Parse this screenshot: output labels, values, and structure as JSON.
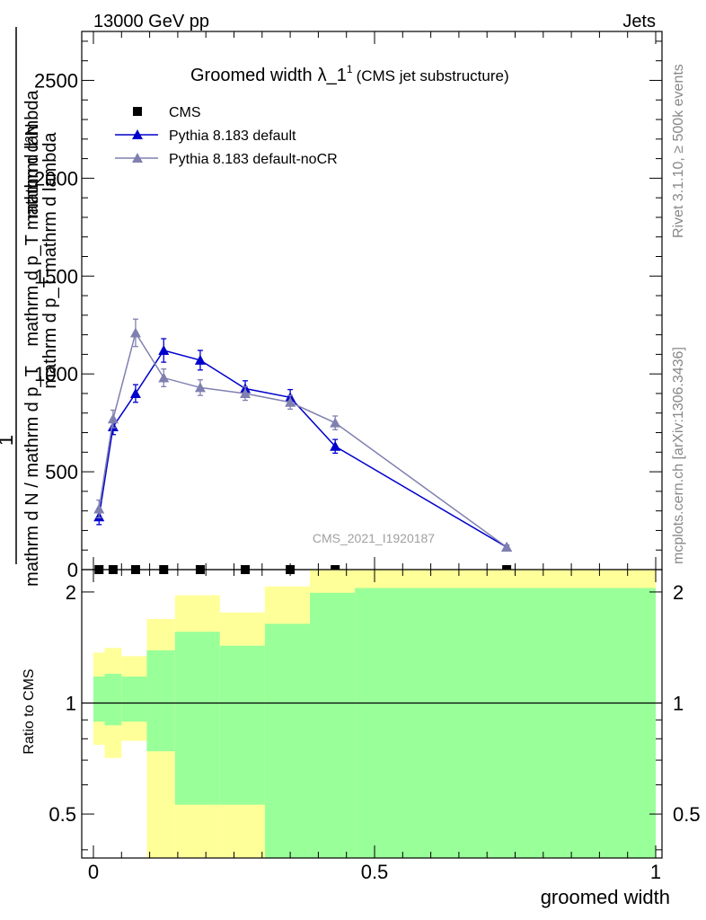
{
  "header": {
    "left": "13000 GeV pp",
    "right": "Jets"
  },
  "side": {
    "rivet": "Rivet 3.1.10, ≥ 500k events",
    "mcplots": "mcplots.cern.ch [arXiv:1306.3436]"
  },
  "watermark": "CMS_2021_I1920187",
  "colors": {
    "cms": "#000000",
    "default": "#0000cc",
    "nocr": "#8080b0",
    "band_yellow": "#ffff99",
    "band_green": "#99ff99"
  },
  "chart_data": [
    {
      "type": "line",
      "title": "Groomed width",
      "title_symbol": "λ_1",
      "title_sup": "1",
      "title_note": "(CMS jet substructure)",
      "ylabel_top": "mathrm d²N",
      "ylabel_top2": "mathrm d p_T mathrm d lambda",
      "ylabel_frac_num": "1",
      "ylabel_frac_den": "mathrm d N / mathrm d p_T",
      "ylabel_den2": "mathrm d p_T mathrm d lambda",
      "xlim": [
        0,
        1
      ],
      "ylim": [
        0,
        2750
      ],
      "yticks": [
        0,
        500,
        1000,
        1500,
        2000,
        2500
      ],
      "ytick_labels": [
        "0",
        "500",
        "1000",
        "1500",
        "2000",
        "2500"
      ],
      "legend": [
        "CMS",
        "Pythia 8.183 default",
        "Pythia 8.183 default-noCR"
      ],
      "series": [
        {
          "name": "CMS",
          "x": [
            0.01,
            0.035,
            0.075,
            0.125,
            0.19,
            0.27,
            0.35,
            0.43,
            0.735
          ],
          "y": [
            0,
            0,
            0,
            0,
            0,
            0,
            0,
            0,
            0
          ]
        },
        {
          "name": "Pythia 8.183 default",
          "x": [
            0.01,
            0.035,
            0.075,
            0.125,
            0.19,
            0.27,
            0.35,
            0.43,
            0.735
          ],
          "y": [
            270,
            730,
            900,
            1120,
            1070,
            925,
            880,
            630,
            115
          ],
          "err": [
            40,
            40,
            45,
            60,
            50,
            40,
            40,
            35,
            10
          ]
        },
        {
          "name": "Pythia 8.183 default-noCR",
          "x": [
            0.01,
            0.035,
            0.075,
            0.125,
            0.19,
            0.27,
            0.35,
            0.43,
            0.735
          ],
          "y": [
            310,
            770,
            1210,
            980,
            930,
            900,
            855,
            750,
            115
          ],
          "err": [
            45,
            45,
            70,
            45,
            40,
            35,
            35,
            35,
            10
          ]
        }
      ]
    },
    {
      "type": "area",
      "ylabel": "Ratio to CMS",
      "xlabel": "groomed width",
      "xlim": [
        0,
        1
      ],
      "ylim": [
        0.38,
        2.3
      ],
      "xticks": [
        0,
        0.5,
        1
      ],
      "xtick_labels": [
        "0",
        "0.5",
        "1"
      ],
      "yticks": [
        0.5,
        1,
        2
      ],
      "ytick_labels": [
        "0.5",
        "1",
        "2"
      ],
      "bins": [
        0,
        0.02,
        0.05,
        0.095,
        0.145,
        0.225,
        0.305,
        0.385,
        0.465,
        1.0
      ],
      "yellow_lo": [
        0.77,
        0.71,
        0.79,
        0.38,
        0.38,
        0.38,
        0.41,
        0.38,
        0.38
      ],
      "yellow_hi": [
        1.37,
        1.41,
        1.34,
        1.69,
        1.96,
        1.76,
        2.07,
        2.3,
        2.3
      ],
      "green_lo": [
        0.89,
        0.87,
        0.89,
        0.74,
        0.53,
        0.53,
        0.38,
        0.38,
        0.38
      ],
      "green_hi": [
        1.18,
        1.2,
        1.18,
        1.39,
        1.56,
        1.43,
        1.64,
        1.99,
        2.05
      ]
    }
  ]
}
